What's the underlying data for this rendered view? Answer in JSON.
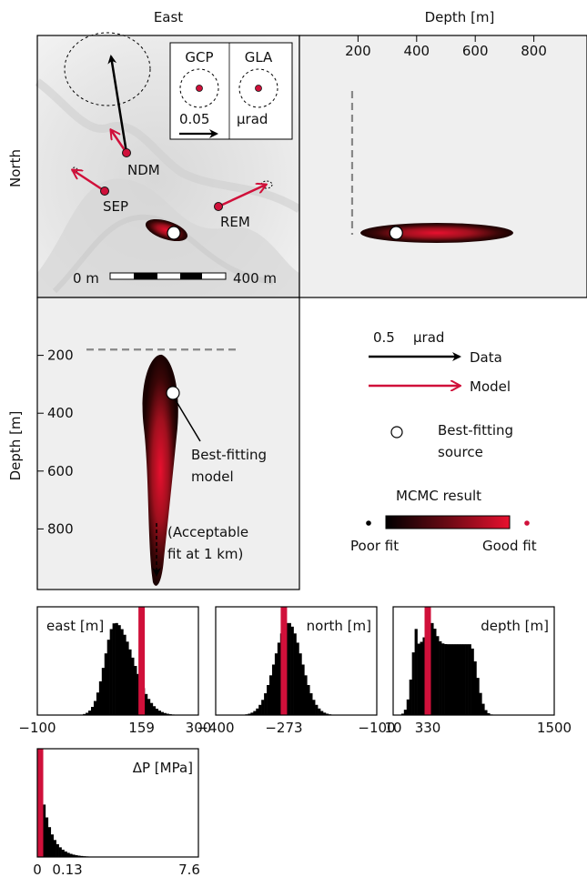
{
  "headers": {
    "east": "East",
    "depth_top": "Depth [m]",
    "north": "North",
    "depth_left": "Depth [m]"
  },
  "map": {
    "stations": [
      "NDM",
      "SEP",
      "REM"
    ],
    "scale_left": "0 m",
    "scale_right": "400 m",
    "inset": {
      "left": "GCP",
      "right": "GLA",
      "scale": "0.05",
      "unit": "µrad"
    }
  },
  "legend": {
    "arrow_scale": "0.5",
    "arrow_unit": "µrad",
    "data": "Data",
    "model": "Model",
    "best_line1": "Best-fitting",
    "best_line2": "source",
    "mcmc_title": "MCMC result",
    "poor": "Poor fit",
    "good": "Good fit"
  },
  "annotations": {
    "best_model_1": "Best-fitting",
    "best_model_2": "model",
    "acceptable_1": "(Acceptable",
    "acceptable_2": "fit at 1 km)"
  },
  "colors": {
    "model": "#d0103a",
    "data": "#000000",
    "dash": "#888888",
    "panel": "#efefef"
  },
  "chart_data": [
    {
      "type": "scatter",
      "panel": "depth-north",
      "x_ticks": [
        "200",
        "400",
        "600",
        "800"
      ],
      "xlim": [
        0,
        1000
      ],
      "best_depth": 330,
      "min_acceptable_depth": 180
    },
    {
      "type": "scatter",
      "panel": "east-depth",
      "y_ticks": [
        "200",
        "400",
        "600",
        "800"
      ],
      "ylim": [
        0,
        1000
      ],
      "best_depth": 330,
      "min_acceptable_depth": 180
    },
    {
      "type": "bar",
      "panel": "hist-east",
      "label": "east [m]",
      "xlim": [
        -100,
        300
      ],
      "tick_labels": [
        "−100",
        "159",
        "300"
      ],
      "best": 159,
      "best_label": "159",
      "hist": {
        "center": 93,
        "sigma": 32,
        "skew": 0.4
      }
    },
    {
      "type": "bar",
      "panel": "hist-north",
      "label": "north [m]",
      "xlim": [
        -400,
        -100
      ],
      "tick_labels": [
        "−400",
        "−273",
        "−100"
      ],
      "best": -273,
      "best_label": "−273",
      "hist": {
        "center": -265,
        "sigma": 25,
        "skew": 0
      }
    },
    {
      "type": "bar",
      "panel": "hist-depth",
      "label": "depth [m]",
      "xlim": [
        10,
        1500
      ],
      "tick_labels": [
        "10",
        "330",
        "1500"
      ],
      "best": 330,
      "best_label": "330",
      "hist": {
        "plateau": [
          240,
          720
        ]
      }
    },
    {
      "type": "bar",
      "panel": "hist-dp",
      "label": "ΔP [MPa]",
      "xlim": [
        0,
        7.6
      ],
      "tick_labels": [
        "0",
        "0.13",
        "7.6"
      ],
      "best": 0.13,
      "best_label": "0.13",
      "hist": {
        "decay": 0.45
      }
    }
  ]
}
